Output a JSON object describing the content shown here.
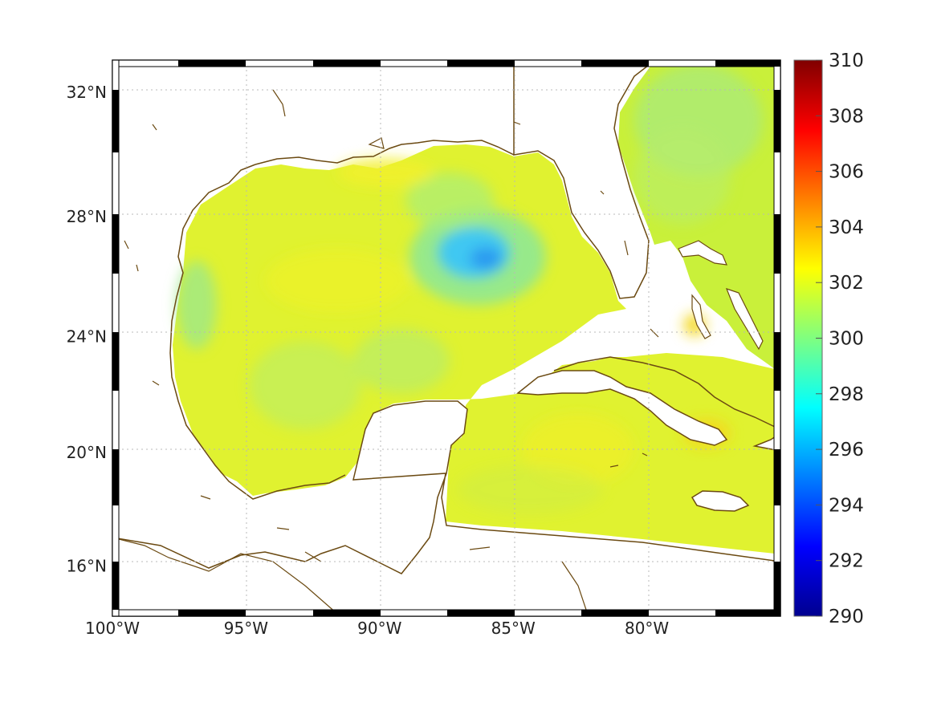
{
  "map": {
    "lon_range": [
      -100,
      -75
    ],
    "lat_range": [
      14.2,
      33
    ],
    "lat_ticks": [
      {
        "value": 32,
        "label": "32°N"
      },
      {
        "value": 28,
        "label": "28°N"
      },
      {
        "value": 24,
        "label": "24°N"
      },
      {
        "value": 20,
        "label": "20°N"
      },
      {
        "value": 16,
        "label": "16°N"
      }
    ],
    "lon_ticks": [
      {
        "value": -100,
        "label": "100°W"
      },
      {
        "value": -95,
        "label": "95°W"
      },
      {
        "value": -90,
        "label": "90°W"
      },
      {
        "value": -85,
        "label": "85°W"
      },
      {
        "value": -80,
        "label": "80°W"
      }
    ],
    "grid": "dotted",
    "field_description_colors": {
      "land": "#ffffff",
      "coastline": "#6b4a12",
      "sea_surface_typical": "#d8f52e",
      "warm_spot": "#f5d61a",
      "cool_eddy": "#3db7f0"
    }
  },
  "colorbar": {
    "min": 290,
    "max": 310,
    "ticks": [
      "310",
      "308",
      "306",
      "304",
      "302",
      "300",
      "298",
      "296",
      "294",
      "292",
      "290"
    ],
    "colormap": "jet"
  }
}
